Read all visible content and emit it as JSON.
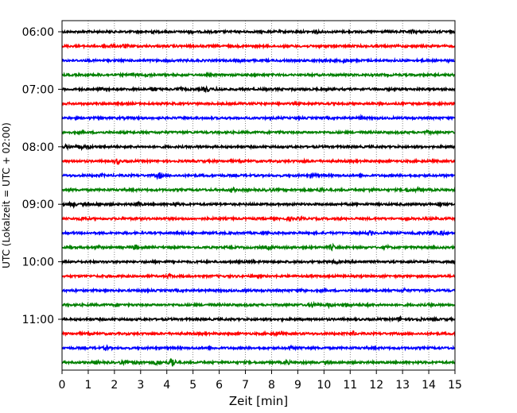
{
  "chart_data": {
    "type": "line",
    "title": "",
    "xlabel": "Zeit  [min]",
    "ylabel": "UTC (Lokalzeit = UTC + 02:00)",
    "xlim": [
      0,
      15
    ],
    "x_ticks": [
      "0",
      "1",
      "2",
      "3",
      "4",
      "5",
      "6",
      "7",
      "8",
      "9",
      "10",
      "11",
      "12",
      "13",
      "14",
      "15"
    ],
    "y_tick_labels": [
      "06:00",
      "07:00",
      "08:00",
      "09:00",
      "10:00",
      "11:00"
    ],
    "grid": "vertical dotted lines at each minute",
    "trace_interval_minutes": 15,
    "trace_colors_cycle": [
      "#000000",
      "#ff0000",
      "#0000ff",
      "#008000"
    ],
    "series": [
      {
        "start": "06:00",
        "color": "#000000",
        "events": [
          [
            3.4,
            1.2
          ],
          [
            4.9,
            1.0
          ],
          [
            9.7,
            1.3
          ],
          [
            13.4,
            1.4
          ]
        ]
      },
      {
        "start": "06:15",
        "color": "#ff0000",
        "events": [
          [
            1.6,
            1.5
          ],
          [
            2.4,
            2.0
          ],
          [
            1.9,
            1.2
          ]
        ]
      },
      {
        "start": "06:30",
        "color": "#0000ff",
        "events": [
          [
            6.8,
            1.0
          ],
          [
            10.0,
            1.4
          ],
          [
            10.8,
            1.3
          ]
        ]
      },
      {
        "start": "06:45",
        "color": "#008000",
        "events": [
          [
            2.7,
            1.6
          ],
          [
            3.3,
            1.0
          ]
        ]
      },
      {
        "start": "07:00",
        "color": "#000000",
        "events": [
          [
            3.5,
            2.4
          ],
          [
            4.5,
            1.6
          ],
          [
            5.5,
            3.0
          ],
          [
            6.0,
            1.4
          ],
          [
            1.5,
            1.2
          ]
        ]
      },
      {
        "start": "07:15",
        "color": "#ff0000",
        "events": []
      },
      {
        "start": "07:30",
        "color": "#0000ff",
        "events": [
          [
            11.4,
            1.3
          ]
        ]
      },
      {
        "start": "07:45",
        "color": "#008000",
        "events": [
          [
            8.3,
            1.0
          ],
          [
            14.0,
            1.3
          ]
        ]
      },
      {
        "start": "08:00",
        "color": "#000000",
        "events": [
          [
            0.2,
            1.5
          ],
          [
            0.7,
            2.0
          ],
          [
            1.0,
            1.2
          ]
        ]
      },
      {
        "start": "08:15",
        "color": "#ff0000",
        "events": [
          [
            2.1,
            3.2
          ],
          [
            9.3,
            1.0
          ]
        ]
      },
      {
        "start": "08:30",
        "color": "#0000ff",
        "events": [
          [
            3.7,
            3.0
          ],
          [
            9.6,
            1.6
          ],
          [
            1.5,
            1.0
          ]
        ]
      },
      {
        "start": "08:45",
        "color": "#008000",
        "events": [
          [
            6.5,
            2.0
          ],
          [
            7.9,
            1.2
          ],
          [
            9.9,
            1.6
          ],
          [
            11.8,
            1.2
          ],
          [
            13.2,
            1.8
          ],
          [
            13.6,
            1.6
          ]
        ]
      },
      {
        "start": "09:00",
        "color": "#000000",
        "events": [
          [
            0.4,
            2.6
          ],
          [
            2.9,
            1.8
          ],
          [
            4.3,
            2.4
          ],
          [
            1.4,
            1.2
          ],
          [
            14.4,
            1.8
          ]
        ]
      },
      {
        "start": "09:15",
        "color": "#ff0000",
        "events": [
          [
            0.8,
            1.6
          ],
          [
            8.7,
            1.4
          ],
          [
            9.1,
            1.0
          ]
        ]
      },
      {
        "start": "09:30",
        "color": "#0000ff",
        "events": [
          [
            11.8,
            2.0
          ],
          [
            14.1,
            1.8
          ],
          [
            14.5,
            1.6
          ],
          [
            13.5,
            1.0
          ]
        ]
      },
      {
        "start": "09:45",
        "color": "#008000",
        "events": [
          [
            2.8,
            2.2
          ],
          [
            1.4,
            1.4
          ],
          [
            10.3,
            2.6
          ],
          [
            7.9,
            1.2
          ],
          [
            12.4,
            1.0
          ]
        ]
      },
      {
        "start": "10:00",
        "color": "#000000",
        "events": [
          [
            3.5,
            1.0
          ],
          [
            7.3,
            1.0
          ],
          [
            10.5,
            1.2
          ],
          [
            14.9,
            1.2
          ]
        ]
      },
      {
        "start": "10:15",
        "color": "#ff0000",
        "events": [
          [
            4.1,
            1.4
          ]
        ]
      },
      {
        "start": "10:30",
        "color": "#0000ff",
        "events": [
          [
            7.0,
            1.0
          ],
          [
            13.1,
            1.2
          ],
          [
            9.2,
            1.0
          ]
        ]
      },
      {
        "start": "10:45",
        "color": "#008000",
        "events": [
          [
            9.6,
            2.2
          ],
          [
            10.2,
            1.8
          ],
          [
            10.9,
            1.6
          ],
          [
            2.1,
            1.2
          ],
          [
            11.6,
            1.2
          ],
          [
            14.1,
            1.0
          ]
        ]
      },
      {
        "start": "11:00",
        "color": "#000000",
        "events": [
          [
            12.9,
            1.6
          ],
          [
            13.6,
            1.2
          ],
          [
            14.2,
            1.0
          ]
        ]
      },
      {
        "start": "11:15",
        "color": "#ff0000",
        "events": [
          [
            8.2,
            1.6
          ],
          [
            11.1,
            2.0
          ]
        ]
      },
      {
        "start": "11:30",
        "color": "#0000ff",
        "events": [
          [
            1.7,
            1.6
          ],
          [
            8.7,
            1.4
          ],
          [
            9.1,
            1.2
          ]
        ]
      },
      {
        "start": "11:45",
        "color": "#008000",
        "events": [
          [
            4.2,
            6.0
          ],
          [
            3.6,
            2.6
          ],
          [
            2.9,
            2.4
          ],
          [
            1.3,
            1.6
          ],
          [
            8.6,
            1.4
          ],
          [
            2.3,
            1.2
          ]
        ]
      }
    ]
  }
}
